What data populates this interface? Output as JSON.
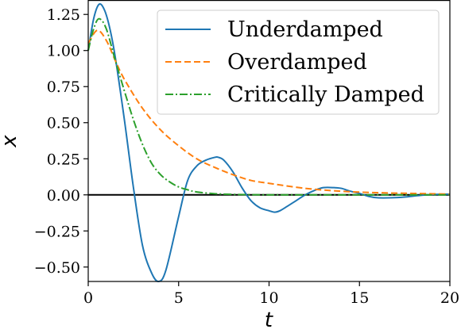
{
  "chart_data": {
    "type": "line",
    "title": "",
    "xlabel": "t",
    "ylabel": "x",
    "xlim": [
      0,
      20
    ],
    "ylim": [
      -0.6,
      1.35
    ],
    "x_ticks": [
      0,
      5,
      10,
      15,
      20
    ],
    "x_tick_labels": [
      "0",
      "5",
      "10",
      "15",
      "20"
    ],
    "y_ticks": [
      -0.5,
      -0.25,
      0.0,
      0.25,
      0.5,
      0.75,
      1.0,
      1.25
    ],
    "y_tick_labels": [
      "−0.50",
      "−0.25",
      "0.00",
      "0.25",
      "0.50",
      "0.75",
      "1.00",
      "1.25"
    ],
    "grid": false,
    "legend_position": "top-right",
    "reference_line": {
      "y": 0,
      "color": "#000000"
    },
    "series": [
      {
        "name": "Underdamped",
        "color": "#1f77b4",
        "dash": "solid",
        "x": [
          0,
          0.3,
          0.6,
          0.9,
          1.2,
          1.5,
          2.0,
          2.5,
          3.0,
          3.5,
          3.9,
          4.3,
          5.0,
          5.5,
          6.0,
          6.5,
          7.0,
          7.2,
          7.5,
          8.0,
          8.5,
          9.0,
          9.5,
          10.0,
          10.3,
          10.6,
          11.0,
          11.5,
          12.0,
          12.5,
          13.0,
          13.6,
          14.0,
          14.5,
          15.0,
          15.5,
          16.0,
          16.8,
          17.5,
          18.0,
          18.5,
          19.0,
          19.5,
          20.0
        ],
        "y": [
          1.0,
          1.22,
          1.32,
          1.28,
          1.15,
          0.95,
          0.52,
          0.05,
          -0.35,
          -0.54,
          -0.6,
          -0.52,
          -0.15,
          0.1,
          0.2,
          0.24,
          0.26,
          0.26,
          0.24,
          0.16,
          0.05,
          -0.04,
          -0.09,
          -0.11,
          -0.12,
          -0.11,
          -0.08,
          -0.04,
          0.0,
          0.03,
          0.05,
          0.05,
          0.045,
          0.025,
          0.01,
          -0.01,
          -0.02,
          -0.02,
          -0.015,
          -0.008,
          -0.002,
          0.002,
          0.004,
          0.005
        ]
      },
      {
        "name": "Overdamped",
        "color": "#ff7f0e",
        "dash": "dashed",
        "x": [
          0,
          0.5,
          1.0,
          1.5,
          2.0,
          3.0,
          4.0,
          5.0,
          6.0,
          7.0,
          8.0,
          9.0,
          10.0,
          12.0,
          14.0,
          16.0,
          18.0,
          20.0
        ],
        "y": [
          1.05,
          1.14,
          1.07,
          0.93,
          0.8,
          0.6,
          0.45,
          0.34,
          0.25,
          0.19,
          0.14,
          0.1,
          0.08,
          0.045,
          0.025,
          0.015,
          0.01,
          0.005
        ]
      },
      {
        "name": "Critically Damped",
        "color": "#2ca02c",
        "dash": "dashdot",
        "x": [
          0,
          0.3,
          0.6,
          1.0,
          1.5,
          2.0,
          2.5,
          3.0,
          3.5,
          4.0,
          4.5,
          5.0,
          5.5,
          6.0,
          7.0,
          8.0,
          9.0,
          10.0,
          12.0,
          15.0,
          18.0,
          20.0
        ],
        "y": [
          1.0,
          1.15,
          1.22,
          1.15,
          0.93,
          0.72,
          0.52,
          0.35,
          0.22,
          0.14,
          0.09,
          0.055,
          0.035,
          0.02,
          0.008,
          0.003,
          0.001,
          0.0,
          0.0,
          0.0,
          0.0,
          0.0
        ]
      }
    ]
  }
}
